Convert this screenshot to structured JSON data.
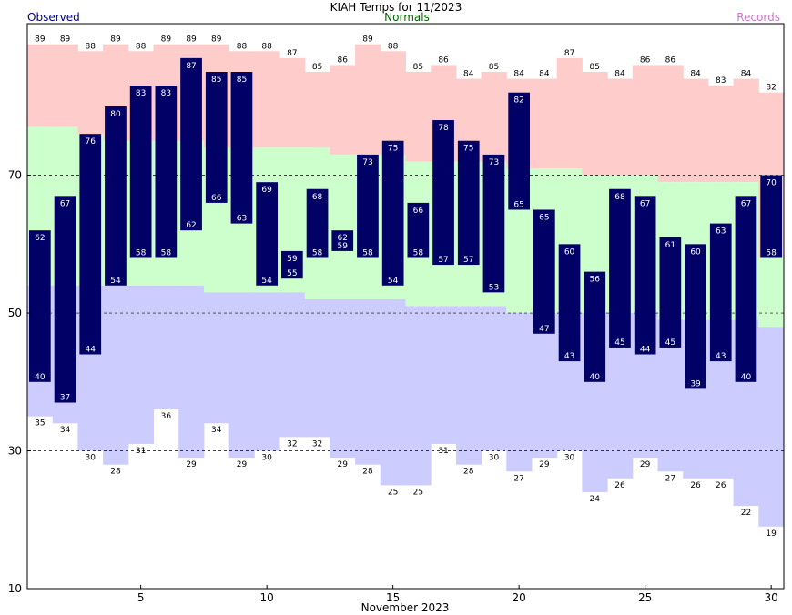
{
  "chart_data": {
    "type": "bar",
    "title": "KIAH Temps for 11/2023",
    "xlabel": "November 2023",
    "ylabel": "",
    "legend": [
      {
        "label": "Observed",
        "color": "#000080"
      },
      {
        "label": "Normals",
        "color": "#006400"
      },
      {
        "label": "Records",
        "color": "#cc77cc"
      }
    ],
    "colors": {
      "observed": "#000066",
      "record_band": "#ffcccc",
      "normal_band": "#ccffcc",
      "low_record_band": "#ccccff"
    },
    "xlim": [
      0.5,
      30.5
    ],
    "ylim": [
      10,
      92
    ],
    "y_ticks": [
      10,
      30,
      50,
      70
    ],
    "x_ticks": [
      5,
      10,
      15,
      20,
      25,
      30
    ],
    "gridlines": [
      30,
      50,
      70
    ],
    "days": [
      1,
      2,
      3,
      4,
      5,
      6,
      7,
      8,
      9,
      10,
      11,
      12,
      13,
      14,
      15,
      16,
      17,
      18,
      19,
      20,
      21,
      22,
      23,
      24,
      25,
      26,
      27,
      28,
      29,
      30
    ],
    "obs_high": [
      62,
      67,
      76,
      80,
      83,
      83,
      87,
      85,
      85,
      69,
      59,
      68,
      62,
      73,
      75,
      66,
      78,
      75,
      73,
      82,
      65,
      60,
      56,
      68,
      67,
      61,
      60,
      63,
      67,
      70
    ],
    "obs_low": [
      40,
      37,
      44,
      54,
      58,
      58,
      62,
      66,
      63,
      54,
      55,
      58,
      59,
      58,
      54,
      58,
      57,
      57,
      53,
      65,
      47,
      43,
      40,
      45,
      44,
      45,
      39,
      43,
      40,
      58
    ],
    "record_high": [
      89,
      89,
      88,
      89,
      88,
      89,
      89,
      89,
      88,
      88,
      87,
      85,
      86,
      89,
      88,
      85,
      86,
      84,
      85,
      84,
      84,
      87,
      85,
      84,
      86,
      86,
      84,
      83,
      84,
      82
    ],
    "record_low": [
      35,
      34,
      30,
      28,
      31,
      36,
      29,
      34,
      29,
      30,
      32,
      32,
      29,
      28,
      25,
      25,
      31,
      28,
      30,
      27,
      29,
      30,
      24,
      26,
      29,
      27,
      26,
      26,
      22,
      19
    ],
    "normal_high": [
      77,
      77,
      76,
      75,
      75,
      75,
      75,
      74,
      74,
      74,
      74,
      74,
      73,
      73,
      73,
      72,
      72,
      72,
      72,
      71,
      71,
      71,
      70,
      70,
      70,
      69,
      69,
      69,
      69,
      58
    ],
    "normal_low": [
      54,
      54,
      54,
      54,
      54,
      54,
      54,
      53,
      53,
      53,
      53,
      52,
      52,
      52,
      52,
      51,
      51,
      51,
      51,
      50,
      50,
      50,
      50,
      50,
      50,
      49,
      49,
      49,
      49,
      48
    ]
  }
}
